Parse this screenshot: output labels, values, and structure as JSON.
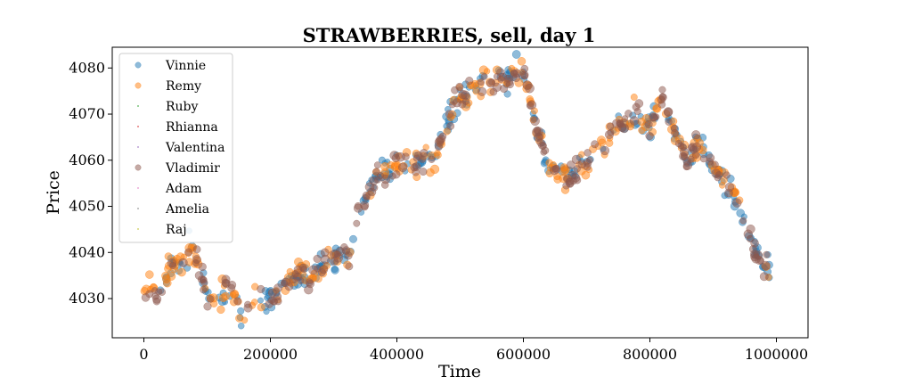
{
  "chart_data": {
    "type": "scatter",
    "title": "STRAWBERRIES, sell, day 1",
    "xlabel": "Time",
    "ylabel": "Price",
    "xlim": [
      -50000,
      1050000
    ],
    "ylim": [
      4021.5,
      4084.5
    ],
    "xticks": [
      0,
      200000,
      400000,
      600000,
      800000,
      1000000
    ],
    "yticks": [
      4030,
      4040,
      4050,
      4060,
      4070,
      4080
    ],
    "grid": false,
    "legend": "top-left",
    "path_keyframes": [
      [
        0,
        4030
      ],
      [
        10000,
        4032
      ],
      [
        20000,
        4030
      ],
      [
        30000,
        4035
      ],
      [
        45000,
        4037
      ],
      [
        60000,
        4038
      ],
      [
        70000,
        4041
      ],
      [
        80000,
        4039
      ],
      [
        90000,
        4037
      ],
      [
        100000,
        4030
      ],
      [
        115000,
        4029
      ],
      [
        130000,
        4032
      ],
      [
        145000,
        4031
      ],
      [
        155000,
        4026
      ],
      [
        165000,
        4029
      ],
      [
        180000,
        4031
      ],
      [
        200000,
        4030
      ],
      [
        215000,
        4032
      ],
      [
        230000,
        4034
      ],
      [
        245000,
        4036
      ],
      [
        260000,
        4034
      ],
      [
        275000,
        4036
      ],
      [
        290000,
        4038
      ],
      [
        310000,
        4040
      ],
      [
        325000,
        4039
      ],
      [
        340000,
        4048
      ],
      [
        355000,
        4053
      ],
      [
        370000,
        4057
      ],
      [
        390000,
        4058
      ],
      [
        410000,
        4060
      ],
      [
        425000,
        4059
      ],
      [
        445000,
        4061
      ],
      [
        460000,
        4060
      ],
      [
        475000,
        4066
      ],
      [
        490000,
        4072
      ],
      [
        505000,
        4074
      ],
      [
        520000,
        4075
      ],
      [
        540000,
        4077
      ],
      [
        560000,
        4077
      ],
      [
        580000,
        4078
      ],
      [
        595000,
        4080
      ],
      [
        605000,
        4077
      ],
      [
        615000,
        4070
      ],
      [
        625000,
        4065
      ],
      [
        635000,
        4060
      ],
      [
        650000,
        4058
      ],
      [
        665000,
        4056
      ],
      [
        680000,
        4057
      ],
      [
        700000,
        4059
      ],
      [
        715000,
        4063
      ],
      [
        730000,
        4064
      ],
      [
        745000,
        4067
      ],
      [
        760000,
        4068
      ],
      [
        775000,
        4070
      ],
      [
        790000,
        4068
      ],
      [
        800000,
        4066
      ],
      [
        810000,
        4072
      ],
      [
        820000,
        4074
      ],
      [
        830000,
        4069
      ],
      [
        845000,
        4064
      ],
      [
        860000,
        4060
      ],
      [
        875000,
        4064
      ],
      [
        890000,
        4061
      ],
      [
        905000,
        4057
      ],
      [
        920000,
        4055
      ],
      [
        935000,
        4052
      ],
      [
        945000,
        4047
      ],
      [
        955000,
        4044
      ],
      [
        965000,
        4041
      ],
      [
        975000,
        4038
      ],
      [
        990000,
        4037
      ]
    ],
    "series": [
      {
        "name": "Vinnie",
        "color": "#1f77b4",
        "size": 3.2,
        "opacity": 0.5,
        "count": 260,
        "spread": 1.4,
        "seed": 11,
        "jitter": 3
      },
      {
        "name": "Remy",
        "color": "#ff7f0e",
        "size": 3.4,
        "opacity": 0.5,
        "count": 230,
        "spread": 1.5,
        "seed": 23,
        "jitter": 3
      },
      {
        "name": "Ruby",
        "color": "#2ca02c",
        "size": 0.7,
        "opacity": 0.6,
        "count": 0,
        "spread": 0,
        "seed": 1,
        "jitter": 0
      },
      {
        "name": "Rhianna",
        "color": "#d62728",
        "size": 0.7,
        "opacity": 0.6,
        "count": 0,
        "spread": 0,
        "seed": 2,
        "jitter": 0
      },
      {
        "name": "Valentina",
        "color": "#9467bd",
        "size": 0.7,
        "opacity": 0.6,
        "count": 0,
        "spread": 0,
        "seed": 3,
        "jitter": 0
      },
      {
        "name": "Vladimir",
        "color": "#8c564b",
        "size": 3.6,
        "opacity": 0.5,
        "count": 250,
        "spread": 1.3,
        "seed": 37,
        "jitter": 3
      },
      {
        "name": "Adam",
        "color": "#e377c2",
        "size": 0.7,
        "opacity": 0.6,
        "count": 0,
        "spread": 0,
        "seed": 4,
        "jitter": 0
      },
      {
        "name": "Amelia",
        "color": "#7f7f7f",
        "size": 0.7,
        "opacity": 0.6,
        "count": 0,
        "spread": 0,
        "seed": 5,
        "jitter": 0
      },
      {
        "name": "Raj",
        "color": "#bcbd22",
        "size": 0.7,
        "opacity": 0.6,
        "count": 0,
        "spread": 0,
        "seed": 6,
        "jitter": 0
      }
    ]
  }
}
